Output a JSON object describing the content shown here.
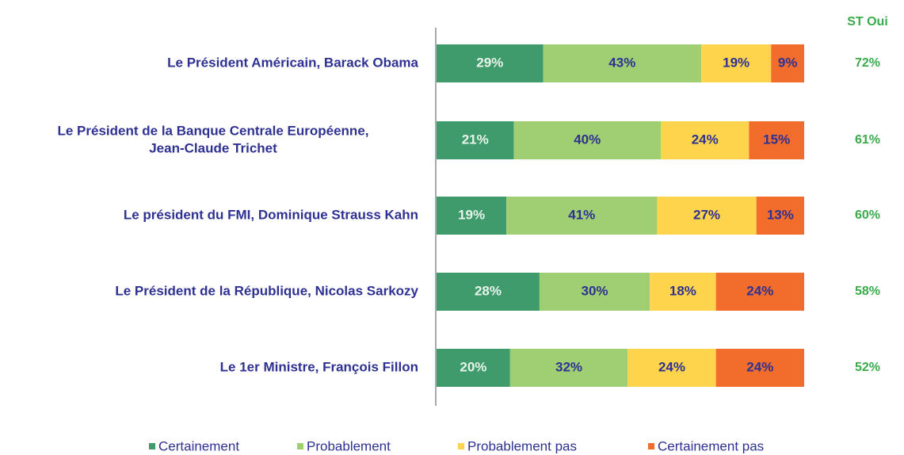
{
  "chart_data": {
    "type": "stacked-bar-horizontal",
    "categories": [
      [
        "Le Président Américain, Barack Obama"
      ],
      [
        "Le Président de la Banque Centrale Européenne,",
        "Jean-Claude Trichet"
      ],
      [
        "Le président du FMI, Dominique Strauss Kahn"
      ],
      [
        "Le Président de la République, Nicolas Sarkozy"
      ],
      [
        "Le 1er Ministre, François Fillon"
      ]
    ],
    "xlim": [
      0,
      100
    ],
    "series": [
      {
        "name": "Certainement",
        "color": "#3f9b6b",
        "label_color": "#e8f4ec",
        "values": [
          29,
          21,
          19,
          28,
          20
        ],
        "value_labels": [
          "29%",
          "21%",
          "19%",
          "28%",
          "20%"
        ]
      },
      {
        "name": "Probablement",
        "color": "#9fcf72",
        "label_color": "#2e3192",
        "values": [
          43,
          40,
          41,
          30,
          32
        ],
        "value_labels": [
          "43%",
          "40%",
          "41%",
          "30%",
          "32%"
        ]
      },
      {
        "name": "Probablement pas",
        "color": "#ffd44d",
        "label_color": "#2e3192",
        "values": [
          19,
          24,
          27,
          18,
          24
        ],
        "value_labels": [
          "19%",
          "24%",
          "27%",
          "18%",
          "24%"
        ]
      },
      {
        "name": "Certainement pas",
        "color": "#f26c2c",
        "label_color": "#2e3192",
        "values": [
          9,
          15,
          13,
          24,
          24
        ],
        "value_labels": [
          "9%",
          "15%",
          "13%",
          "24%",
          "24%"
        ]
      }
    ],
    "totals": {
      "title": "ST Oui",
      "values": [
        72,
        61,
        60,
        58,
        52
      ],
      "value_labels": [
        "72%",
        "61%",
        "60%",
        "58%",
        "52%"
      ]
    }
  }
}
